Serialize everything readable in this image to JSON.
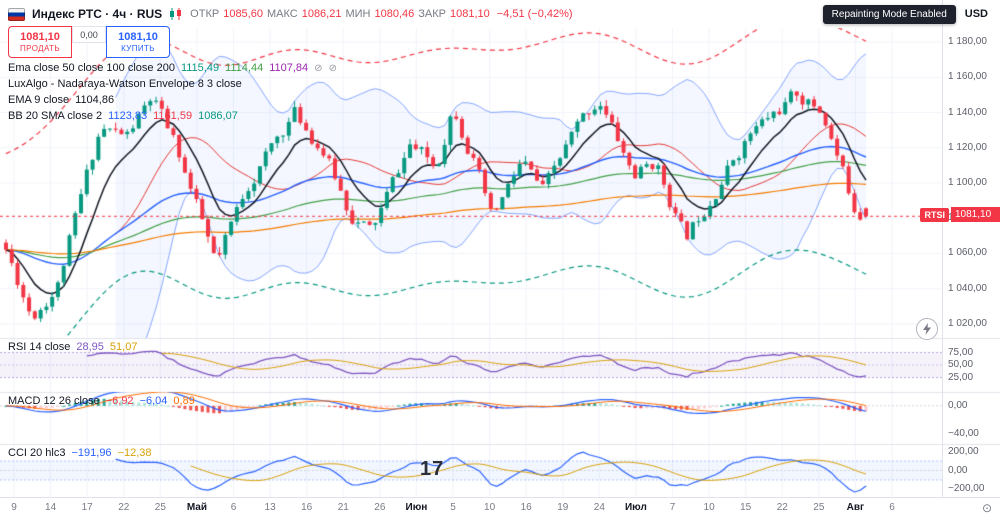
{
  "header": {
    "title": "Индекс РТС · 4ч · RUS",
    "ohlc": {
      "o_label": "ОТКР",
      "o": "1085,60",
      "h_label": "МАКС",
      "h": "1086,21",
      "l_label": "МИН",
      "l": "1080,46",
      "c_label": "ЗАКР",
      "c": "1081,10",
      "change": "−4,51 (−0,42%)"
    },
    "repaint_badge": "Repainting Mode Enabled",
    "currency": "USD"
  },
  "trade": {
    "sell_price": "1081,10",
    "sell_label": "ПРОДАТЬ",
    "spread": "0,00",
    "buy_price": "1081,10",
    "buy_label": "КУПИТЬ"
  },
  "legends": {
    "ema_row": {
      "title": "Ema close 50 close 100 close 200",
      "v1": "1115,49",
      "v2": "1114,44",
      "v3": "1107,84"
    },
    "nw_row": {
      "title": "LuxAlgo - Nadaraya-Watson Envelope 8 3 close"
    },
    "ema9_row": {
      "title": "EMA 9 close",
      "v1": "1104,86"
    },
    "bb_row": {
      "title": "BB 20 SMA close 2",
      "v1": "1123,83",
      "v2": "1161,59",
      "v3": "1086,07"
    }
  },
  "price_axis": {
    "labels": [
      "1 180,00",
      "1 160,00",
      "1 140,00",
      "1 120,00",
      "1 100,00",
      "1 080,00",
      "1 060,00",
      "1 040,00",
      "1 020,00"
    ],
    "last_price": "1081,10",
    "symbol_tag": "RTSI"
  },
  "panes": {
    "rsi": {
      "title": "RSI 14 close",
      "v1": "28,95",
      "v2": "51,07",
      "axis": [
        "75,00",
        "50,00",
        "25,00"
      ]
    },
    "macd": {
      "title": "MACD 12 26 close",
      "v1": "−6,92",
      "v2": "−6,04",
      "v3": "0,89",
      "axis": [
        "0,00",
        "−40,00"
      ]
    },
    "cci": {
      "title": "CCI 20 hlc3",
      "v1": "−191,96",
      "v2": "−12,38",
      "axis": [
        "200,00",
        "0,00",
        "−200,00"
      ]
    }
  },
  "time_axis": {
    "labels": [
      "9",
      "14",
      "17",
      "22",
      "25",
      "Май",
      "6",
      "13",
      "16",
      "21",
      "26",
      "Июн",
      "5",
      "10",
      "16",
      "19",
      "24",
      "Июл",
      "7",
      "10",
      "15",
      "22",
      "25",
      "Авг",
      "6"
    ]
  },
  "watermark": "17",
  "chart_data": {
    "type": "candlestick",
    "symbol": "Индекс РТС",
    "interval": "4ч",
    "currency": "USD",
    "current": {
      "open": 1085.6,
      "high": 1086.21,
      "low": 1080.46,
      "close": 1081.1,
      "change": -4.51,
      "change_pct": -0.42
    },
    "price_range": [
      1012,
      1188
    ],
    "y_grid_step": 20,
    "candles": 150,
    "seed": 11,
    "anchors": [
      [
        0,
        1062
      ],
      [
        0.03,
        1025
      ],
      [
        0.06,
        1042
      ],
      [
        0.11,
        1132
      ],
      [
        0.14,
        1126
      ],
      [
        0.17,
        1148
      ],
      [
        0.2,
        1118
      ],
      [
        0.245,
        1052
      ],
      [
        0.28,
        1098
      ],
      [
        0.335,
        1140
      ],
      [
        0.37,
        1118
      ],
      [
        0.4,
        1083
      ],
      [
        0.425,
        1072
      ],
      [
        0.47,
        1122
      ],
      [
        0.5,
        1108
      ],
      [
        0.52,
        1146
      ],
      [
        0.545,
        1112
      ],
      [
        0.565,
        1078
      ],
      [
        0.6,
        1112
      ],
      [
        0.625,
        1094
      ],
      [
        0.66,
        1128
      ],
      [
        0.69,
        1148
      ],
      [
        0.73,
        1104
      ],
      [
        0.755,
        1112
      ],
      [
        0.79,
        1068
      ],
      [
        0.835,
        1106
      ],
      [
        0.865,
        1128
      ],
      [
        0.92,
        1150
      ],
      [
        0.95,
        1140
      ],
      [
        0.985,
        1088
      ],
      [
        1,
        1081.1
      ]
    ],
    "indicators": {
      "ema_fast": 9,
      "ema_set": [
        50,
        100,
        200
      ],
      "bb": [
        20,
        2
      ],
      "nw": [
        8,
        3
      ],
      "rsi": 14,
      "macd": [
        12,
        26,
        9
      ],
      "cci": 20
    },
    "subpane_levels": {
      "rsi": [
        75,
        50,
        25
      ],
      "macd": [
        0,
        -40
      ],
      "cci": [
        200,
        100,
        0,
        -100,
        -200
      ]
    }
  }
}
